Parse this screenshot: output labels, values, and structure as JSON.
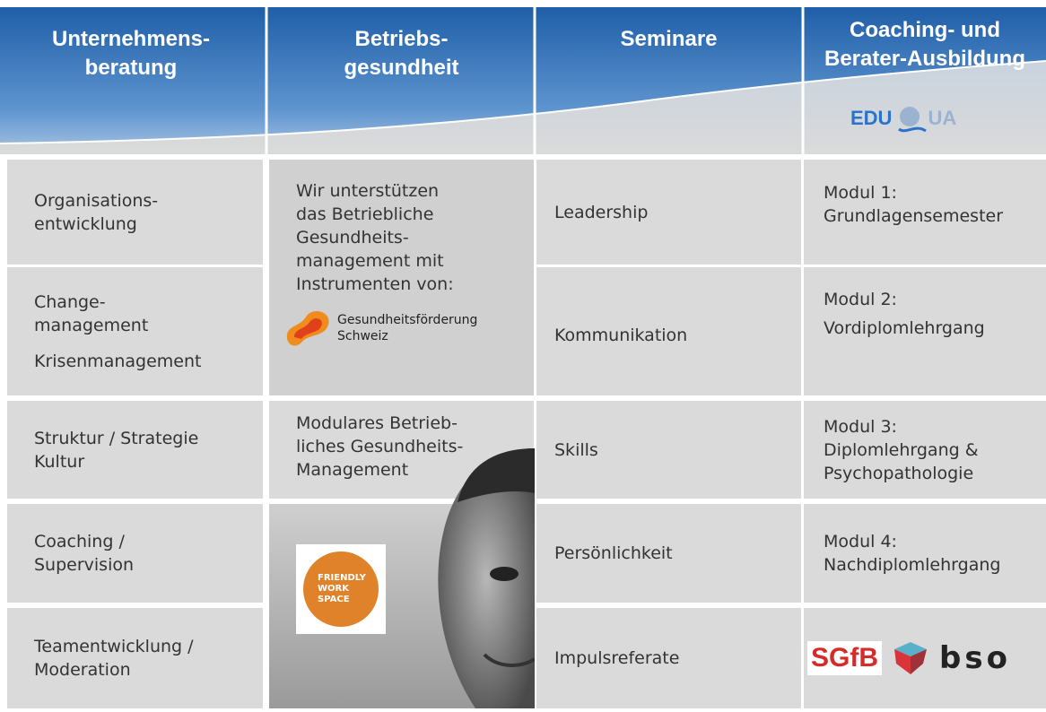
{
  "header": {
    "columns": [
      [
        "Unternehmens-",
        "beratung"
      ],
      [
        "Betriebs-",
        "gesundheit"
      ],
      [
        "Seminare"
      ],
      [
        "Coaching- und",
        "Berater-Ausbildung"
      ]
    ],
    "eduqua_logo": [
      "EDU",
      "UA"
    ]
  },
  "unternehmensberatung": [
    [
      "Organisations-",
      "entwicklung"
    ],
    [
      "Change-",
      "management",
      "Krisenmanagement"
    ],
    [
      "Struktur / Strategie",
      "Kultur"
    ],
    [
      "Coaching /",
      "Supervision"
    ],
    [
      "Teamentwicklung /",
      "Moderation"
    ]
  ],
  "betriebsgesundheit": {
    "intro": [
      "Wir unterstützen",
      "das Betriebliche",
      "Gesundheits-",
      "management mit",
      "Instrumenten von:"
    ],
    "logo_gesundheit": [
      "Gesundheitsförderung",
      "Schweiz"
    ],
    "modular": [
      "Modulares Betrieb-",
      "liches Gesundheits-",
      "Management"
    ],
    "logo_friendly": [
      "FRIENDLY",
      "WORK",
      "SPACE"
    ]
  },
  "seminare": [
    "Leadership",
    "Kommunikation",
    "Skills",
    "Persönlichkeit",
    "Impulsreferate"
  ],
  "ausbildung": [
    [
      "Modul 1:",
      "Grundlagensemester"
    ],
    [
      "Modul 2:",
      "Vordiplomlehrgang"
    ],
    [
      "Modul 3:",
      "Diplomlehrgang &",
      "Psychopathologie"
    ],
    [
      "Modul 4:",
      "Nachdiplomlehrgang"
    ]
  ],
  "partner_logos": [
    "SGfB",
    "bso"
  ]
}
